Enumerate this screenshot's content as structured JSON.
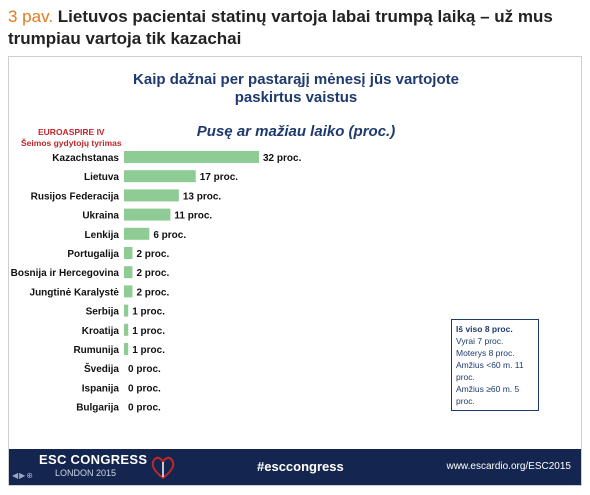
{
  "caption": {
    "number": "3 pav.",
    "text": "Lietuvos pacientai statinų vartoja labai trumpą laiką – už mus trumpiau vartoja tik kazachai"
  },
  "slide": {
    "title_line1": "Kaip dažnai per pastarąjį mėnesį jūs vartojote",
    "title_line2": "paskirtus vaistus",
    "subtitle": "Pusę ar mažiau laiko (proc.)",
    "study_line1": "EUROASPIRE IV",
    "study_line2": "Šeimos gydytojų tyrimas"
  },
  "chart_data": {
    "type": "bar",
    "orientation": "horizontal",
    "title": "Kaip dažnai per pastarąjį mėnesį jūs vartojote paskirtus vaistus",
    "subtitle": "Pusę ar mažiau laiko (proc.)",
    "categories": [
      "Kazachstanas",
      "Lietuva",
      "Rusijos Federacija",
      "Ukraina",
      "Lenkija",
      "Portugalija",
      "Bosnija ir Hercegovina",
      "Jungtinė Karalystė",
      "Serbija",
      "Kroatija",
      "Rumunija",
      "Švedija",
      "Ispanija",
      "Bulgarija"
    ],
    "values": [
      32,
      17,
      13,
      11,
      6,
      2,
      2,
      2,
      1,
      1,
      1,
      0,
      0,
      0
    ],
    "value_labels": [
      "32 proc.",
      "17 proc.",
      "13 proc.",
      "11 proc.",
      "6 proc.",
      "2 proc.",
      "2 proc.",
      "2 proc.",
      "1 proc.",
      "1 proc.",
      "1 proc.",
      "0 proc.",
      "0 proc.",
      "0 proc."
    ],
    "bar_color": "#8fcc95",
    "xlim": [
      0,
      32
    ],
    "grid": false
  },
  "legend": {
    "title": "Iš viso 8 proc.",
    "lines": [
      "Vyrai 7 proc.",
      "Moterys 8 proc.",
      "Amžius <60 m. 11 proc.",
      "Amžius ≥60 m. 5 proc."
    ]
  },
  "footer": {
    "brand": "ESC CONGRESS",
    "city": "LONDON 2015",
    "hashtag": "#esccongress",
    "url": "www.escardio.org/ESC2015",
    "colors": {
      "background": "#14264f",
      "accent": "#c0262a"
    }
  }
}
